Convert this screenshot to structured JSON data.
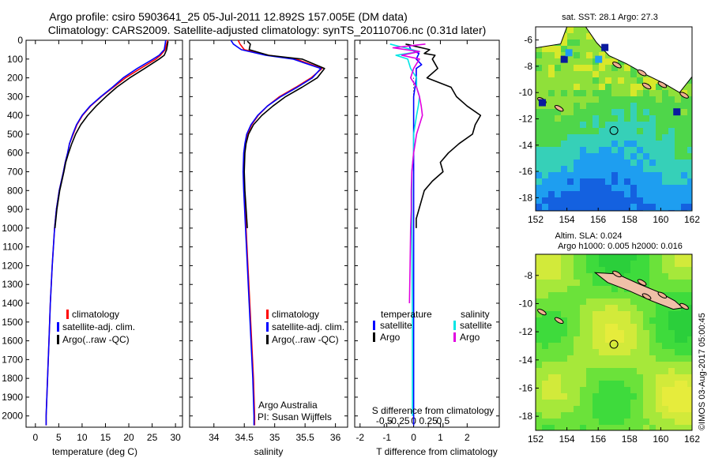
{
  "header": {
    "line1": "Argo profile: csiro 5903641_25 05-Jul-2011 12.892S 157.005E (DM data)",
    "line2": "Climatology: CARS2009. Satellite-adjusted climatology: synTS_20110706.nc (0.31d later)"
  },
  "colors": {
    "climatology": "#ff0000",
    "satellite": "#0000ff",
    "argo": "#000000",
    "sat_s": "#00e5e5",
    "argo_s": "#e000e0"
  },
  "chart_data": [
    {
      "type": "line",
      "id": "temperature",
      "xlabel": "temperature (deg C)",
      "ylabel": "",
      "xlim": [
        -2,
        31.5
      ],
      "ylim": [
        2060,
        0
      ],
      "xticks": [
        0,
        5,
        10,
        15,
        20,
        25,
        30
      ],
      "yticks": [
        0,
        100,
        200,
        300,
        400,
        500,
        600,
        700,
        800,
        900,
        1000,
        1100,
        1200,
        1300,
        1400,
        1500,
        1600,
        1700,
        1800,
        1900,
        2000
      ],
      "legend": {
        "placement": "bottom-center",
        "entries": [
          "climatology",
          "satellite-adj. clim.",
          "Argo(..raw -QC)"
        ]
      },
      "series": [
        {
          "name": "climatology",
          "color": "#ff0000",
          "depth": [
            0,
            20,
            50,
            80,
            100,
            150,
            200,
            250,
            300,
            350,
            400,
            450,
            500,
            550,
            600,
            650,
            700,
            800,
            900,
            1000,
            1200,
            1400,
            1600,
            1800,
            2000,
            2050
          ],
          "values": [
            28.3,
            28.1,
            27.8,
            26.8,
            25.8,
            22.5,
            19.3,
            16.7,
            14.1,
            11.8,
            10.1,
            8.9,
            8.1,
            7.3,
            6.9,
            6.4,
            6.0,
            5.1,
            4.5,
            4.1,
            3.6,
            3.2,
            2.9,
            2.6,
            2.3,
            2.3
          ]
        },
        {
          "name": "satellite-adj. clim.",
          "color": "#0000ff",
          "depth": [
            0,
            20,
            50,
            80,
            100,
            150,
            200,
            250,
            300,
            350,
            400,
            450,
            500,
            550,
            600,
            650,
            700,
            800,
            900,
            1000,
            1200,
            1400,
            1600,
            1800,
            2000,
            2050
          ],
          "values": [
            27.9,
            27.8,
            27.6,
            26.5,
            25.2,
            21.8,
            18.8,
            16.5,
            14.0,
            11.7,
            10.0,
            8.8,
            8.0,
            7.3,
            6.9,
            6.4,
            6.0,
            5.1,
            4.5,
            4.1,
            3.6,
            3.2,
            2.9,
            2.6,
            2.3,
            2.3
          ]
        },
        {
          "name": "Argo(..raw -QC)",
          "color": "#000000",
          "depth": [
            5,
            20,
            50,
            80,
            100,
            150,
            200,
            250,
            300,
            350,
            400,
            450,
            500,
            550,
            600,
            650,
            700,
            800,
            900,
            1000
          ],
          "values": [
            28.4,
            28.3,
            28.1,
            27.6,
            26.5,
            23.4,
            20.2,
            17.4,
            15.1,
            13.0,
            11.2,
            9.7,
            8.6,
            7.8,
            7.1,
            6.5,
            6.1,
            5.2,
            4.6,
            4.2
          ]
        }
      ]
    },
    {
      "type": "line",
      "id": "salinity",
      "xlabel": "salinity",
      "ylabel": "",
      "xlim": [
        33.6,
        36.2
      ],
      "ylim": [
        2060,
        0
      ],
      "xticks": [
        34,
        34.5,
        35,
        35.5,
        36
      ],
      "legend": {
        "placement": "bottom-center",
        "entries": [
          "climatology",
          "satellite-adj. clim.",
          "Argo(..raw -QC)"
        ]
      },
      "annotation": [
        "Argo Australia",
        "PI: Susan Wijffels"
      ],
      "series": [
        {
          "name": "climatology",
          "color": "#ff0000",
          "depth": [
            0,
            20,
            50,
            80,
            100,
            150,
            200,
            250,
            300,
            350,
            400,
            450,
            500,
            550,
            600,
            700,
            800,
            1000,
            1200,
            1400,
            1600,
            1800,
            2000,
            2050
          ],
          "values": [
            34.4,
            34.43,
            34.5,
            34.9,
            35.35,
            35.78,
            35.6,
            35.35,
            35.08,
            34.88,
            34.73,
            34.62,
            34.55,
            34.52,
            34.5,
            34.49,
            34.5,
            34.53,
            34.56,
            34.59,
            34.62,
            34.65,
            34.67,
            34.67
          ]
        },
        {
          "name": "satellite-adj. clim.",
          "color": "#0000ff",
          "depth": [
            0,
            20,
            50,
            80,
            100,
            150,
            200,
            250,
            300,
            350,
            400,
            450,
            500,
            550,
            600,
            700,
            800,
            1000,
            1200,
            1400,
            1600,
            1800,
            2000,
            2050
          ],
          "values": [
            34.28,
            34.32,
            34.45,
            34.85,
            35.3,
            35.76,
            35.62,
            35.37,
            35.1,
            34.88,
            34.72,
            34.61,
            34.54,
            34.51,
            34.49,
            34.48,
            34.49,
            34.52,
            34.55,
            34.58,
            34.61,
            34.64,
            34.66,
            34.66
          ]
        },
        {
          "name": "Argo(..raw -QC)",
          "color": "#000000",
          "depth": [
            5,
            20,
            50,
            80,
            100,
            150,
            200,
            250,
            300,
            350,
            400,
            450,
            500,
            550,
            600,
            700,
            800,
            1000
          ],
          "values": [
            34.55,
            34.6,
            34.58,
            34.9,
            35.45,
            35.82,
            35.7,
            35.45,
            35.18,
            34.97,
            34.79,
            34.65,
            34.57,
            34.53,
            34.51,
            34.5,
            34.51,
            34.55
          ]
        }
      ]
    },
    {
      "type": "line",
      "id": "difference",
      "xlabel": "T difference from climatology",
      "xlabel_top": "S difference from climatology",
      "xlim": [
        -2.2,
        3.2
      ],
      "ylim": [
        2060,
        0
      ],
      "xticks": [
        -2,
        -1,
        0,
        1,
        2
      ],
      "top_ticks": [
        -0.5,
        -0.25,
        0,
        0.25,
        0.5
      ],
      "top_tick_labels": [
        "-0.5",
        "-0.25",
        "0",
        "0.25",
        "0.5"
      ],
      "legend": {
        "placement": "bottom",
        "groups": [
          {
            "title": "temperature",
            "entries": [
              "satellite",
              "Argo"
            ]
          },
          {
            "title": "salinity",
            "entries": [
              "satellite",
              "Argo"
            ]
          }
        ]
      },
      "series": [
        {
          "name": "temperature satellite",
          "color": "#0000ff",
          "depth": [
            20,
            50,
            70,
            100,
            130,
            150,
            200,
            250,
            300,
            400,
            500,
            600,
            800,
            1000,
            1500,
            2000,
            2050
          ],
          "values": [
            -0.2,
            -0.1,
            0.2,
            0.1,
            0.3,
            0.1,
            0.1,
            0.05,
            0.0,
            0.0,
            0.0,
            0.0,
            0.0,
            0.0,
            0.0,
            0.0,
            0.0
          ]
        },
        {
          "name": "temperature Argo",
          "color": "#000000",
          "depth": [
            20,
            50,
            70,
            80,
            100,
            150,
            200,
            250,
            300,
            350,
            400,
            450,
            500,
            550,
            600,
            650,
            700,
            750,
            800,
            850,
            900,
            950,
            1000
          ],
          "values": [
            -0.3,
            0.6,
            0.4,
            0.8,
            0.7,
            0.9,
            0.5,
            1.4,
            1.6,
            2.0,
            2.5,
            2.3,
            2.2,
            1.7,
            1.3,
            1.0,
            1.1,
            0.7,
            0.4,
            0.3,
            0.2,
            0.1,
            0.1
          ]
        },
        {
          "name": "salinity satellite",
          "color": "#00e5e5",
          "depth": [
            20,
            40,
            60,
            80,
            100,
            150,
            200,
            250,
            300,
            350,
            400,
            500,
            600,
            700,
            800,
            1000,
            1500,
            2000
          ],
          "values": [
            -0.4,
            -0.15,
            0.1,
            -0.3,
            -0.1,
            -0.05,
            0.05,
            0.05,
            0.1,
            0.08,
            0.05,
            0.0,
            0.0,
            -0.03,
            -0.03,
            -0.03,
            -0.02,
            -0.02
          ]
        },
        {
          "name": "salinity Argo",
          "color": "#e000e0",
          "depth": [
            20,
            40,
            60,
            80,
            100,
            150,
            200,
            250,
            300,
            350,
            400,
            450,
            500,
            600,
            700,
            800,
            900,
            1000,
            1200,
            1400
          ],
          "values": [
            0.2,
            -0.35,
            0.1,
            -0.2,
            0.1,
            0.0,
            -0.05,
            0.05,
            0.1,
            0.13,
            0.15,
            0.1,
            0.05,
            0.0,
            -0.03,
            -0.04,
            -0.04,
            -0.05,
            -0.06,
            -0.07
          ]
        }
      ]
    },
    {
      "type": "heatmap",
      "id": "sst-map",
      "title": "sat. SST: 28.1  Argo: 27.3",
      "xlim": [
        152,
        162
      ],
      "ylim": [
        -19,
        -5
      ],
      "xticks": [
        152,
        154,
        156,
        158,
        160,
        162
      ],
      "yticks": [
        -6,
        -8,
        -10,
        -12,
        -14,
        -16,
        -18
      ],
      "marker": {
        "lon": 157.005,
        "lat": -12.892
      }
    },
    {
      "type": "heatmap",
      "id": "sla-map",
      "title_line1": "Altim. SLA: 0.024",
      "title_line2": "Argo h1000: 0.005 h2000: 0.016",
      "xlim": [
        152,
        162
      ],
      "ylim": [
        -19,
        -6.5
      ],
      "xticks": [
        152,
        154,
        156,
        158,
        160,
        162
      ],
      "yticks": [
        -8,
        -10,
        -12,
        -14,
        -16,
        -18
      ],
      "marker": {
        "lon": 157.005,
        "lat": -12.892
      }
    }
  ],
  "legend_left": {
    "clim": "climatology",
    "sat": "satellite-adj. clim.",
    "argo": "Argo(..raw -QC)"
  },
  "legend_diff": {
    "temp_title": "temperature",
    "sal_title": "salinity",
    "sat": "satellite",
    "argo": "Argo"
  },
  "side_label": "©IMOS 03-Aug-2017 05:00:45"
}
